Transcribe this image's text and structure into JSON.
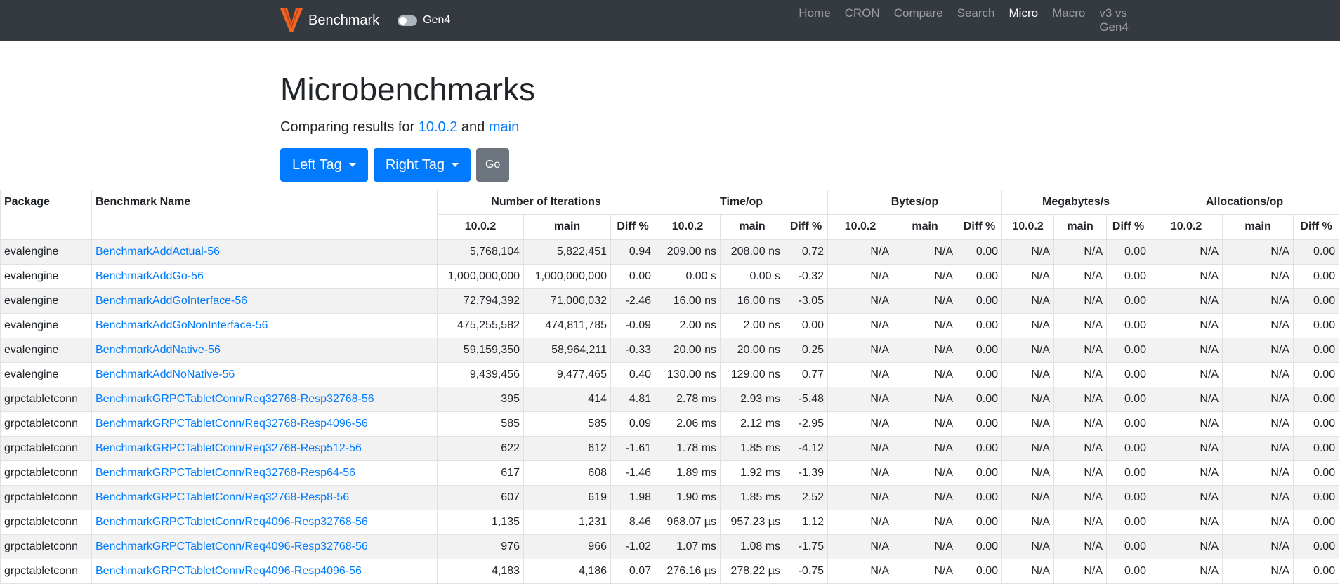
{
  "nav": {
    "brand": "Benchmark",
    "toggle": "Gen4",
    "links": [
      "Home",
      "CRON",
      "Compare",
      "Search",
      "Micro",
      "Macro",
      "v3 vs Gen4"
    ],
    "active": 4
  },
  "title": "Microbenchmarks",
  "subtitle": {
    "prefix": "Comparing results for",
    "left": "10.0.2",
    "middle": "and",
    "right": "main"
  },
  "buttons": {
    "left": "Left Tag",
    "right": "Right Tag",
    "go": "Go"
  },
  "table": {
    "head": [
      "Package",
      "Benchmark Name"
    ],
    "groups": [
      "Number of Iterations",
      "Time/op",
      "Bytes/op",
      "Megabytes/s",
      "Allocations/op"
    ],
    "subheaders": [
      "10.0.2",
      "main",
      "Diff %",
      "10.0.2",
      "main",
      "Diff %",
      "10.0.2",
      "main",
      "Diff %",
      "10.0.2",
      "main",
      "Diff %",
      "10.0.2",
      "main",
      "Diff %"
    ],
    "rows": [
      [
        "evalengine",
        "BenchmarkAddActual-56",
        "5,768,104",
        "5,822,451",
        "0.94",
        "209.00 ns",
        "208.00 ns",
        "0.72",
        "N/A",
        "N/A",
        "0.00",
        "N/A",
        "N/A",
        "0.00",
        "N/A",
        "N/A",
        "0.00"
      ],
      [
        "evalengine",
        "BenchmarkAddGo-56",
        "1,000,000,000",
        "1,000,000,000",
        "0.00",
        "0.00 s",
        "0.00 s",
        "-0.32",
        "N/A",
        "N/A",
        "0.00",
        "N/A",
        "N/A",
        "0.00",
        "N/A",
        "N/A",
        "0.00"
      ],
      [
        "evalengine",
        "BenchmarkAddGoInterface-56",
        "72,794,392",
        "71,000,032",
        "-2.46",
        "16.00 ns",
        "16.00 ns",
        "-3.05",
        "N/A",
        "N/A",
        "0.00",
        "N/A",
        "N/A",
        "0.00",
        "N/A",
        "N/A",
        "0.00"
      ],
      [
        "evalengine",
        "BenchmarkAddGoNonInterface-56",
        "475,255,582",
        "474,811,785",
        "-0.09",
        "2.00 ns",
        "2.00 ns",
        "0.00",
        "N/A",
        "N/A",
        "0.00",
        "N/A",
        "N/A",
        "0.00",
        "N/A",
        "N/A",
        "0.00"
      ],
      [
        "evalengine",
        "BenchmarkAddNative-56",
        "59,159,350",
        "58,964,211",
        "-0.33",
        "20.00 ns",
        "20.00 ns",
        "0.25",
        "N/A",
        "N/A",
        "0.00",
        "N/A",
        "N/A",
        "0.00",
        "N/A",
        "N/A",
        "0.00"
      ],
      [
        "evalengine",
        "BenchmarkAddNoNative-56",
        "9,439,456",
        "9,477,465",
        "0.40",
        "130.00 ns",
        "129.00 ns",
        "0.77",
        "N/A",
        "N/A",
        "0.00",
        "N/A",
        "N/A",
        "0.00",
        "N/A",
        "N/A",
        "0.00"
      ],
      [
        "grpctabletconn",
        "BenchmarkGRPCTabletConn/Req32768-Resp32768-56",
        "395",
        "414",
        "4.81",
        "2.78 ms",
        "2.93 ms",
        "-5.48",
        "N/A",
        "N/A",
        "0.00",
        "N/A",
        "N/A",
        "0.00",
        "N/A",
        "N/A",
        "0.00"
      ],
      [
        "grpctabletconn",
        "BenchmarkGRPCTabletConn/Req32768-Resp4096-56",
        "585",
        "585",
        "0.09",
        "2.06 ms",
        "2.12 ms",
        "-2.95",
        "N/A",
        "N/A",
        "0.00",
        "N/A",
        "N/A",
        "0.00",
        "N/A",
        "N/A",
        "0.00"
      ],
      [
        "grpctabletconn",
        "BenchmarkGRPCTabletConn/Req32768-Resp512-56",
        "622",
        "612",
        "-1.61",
        "1.78 ms",
        "1.85 ms",
        "-4.12",
        "N/A",
        "N/A",
        "0.00",
        "N/A",
        "N/A",
        "0.00",
        "N/A",
        "N/A",
        "0.00"
      ],
      [
        "grpctabletconn",
        "BenchmarkGRPCTabletConn/Req32768-Resp64-56",
        "617",
        "608",
        "-1.46",
        "1.89 ms",
        "1.92 ms",
        "-1.39",
        "N/A",
        "N/A",
        "0.00",
        "N/A",
        "N/A",
        "0.00",
        "N/A",
        "N/A",
        "0.00"
      ],
      [
        "grpctabletconn",
        "BenchmarkGRPCTabletConn/Req32768-Resp8-56",
        "607",
        "619",
        "1.98",
        "1.90 ms",
        "1.85 ms",
        "2.52",
        "N/A",
        "N/A",
        "0.00",
        "N/A",
        "N/A",
        "0.00",
        "N/A",
        "N/A",
        "0.00"
      ],
      [
        "grpctabletconn",
        "BenchmarkGRPCTabletConn/Req4096-Resp32768-56",
        "1,135",
        "1,231",
        "8.46",
        "968.07 µs",
        "957.23 µs",
        "1.12",
        "N/A",
        "N/A",
        "0.00",
        "N/A",
        "N/A",
        "0.00",
        "N/A",
        "N/A",
        "0.00"
      ],
      [
        "grpctabletconn",
        "BenchmarkGRPCTabletConn/Req4096-Resp32768-56",
        "976",
        "966",
        "-1.02",
        "1.07 ms",
        "1.08 ms",
        "-1.75",
        "N/A",
        "N/A",
        "0.00",
        "N/A",
        "N/A",
        "0.00",
        "N/A",
        "N/A",
        "0.00"
      ],
      [
        "grpctabletconn",
        "BenchmarkGRPCTabletConn/Req4096-Resp4096-56",
        "4,183",
        "4,186",
        "0.07",
        "276.16 µs",
        "278.22 µs",
        "-0.75",
        "N/A",
        "N/A",
        "0.00",
        "N/A",
        "N/A",
        "0.00",
        "N/A",
        "N/A",
        "0.00"
      ]
    ]
  }
}
